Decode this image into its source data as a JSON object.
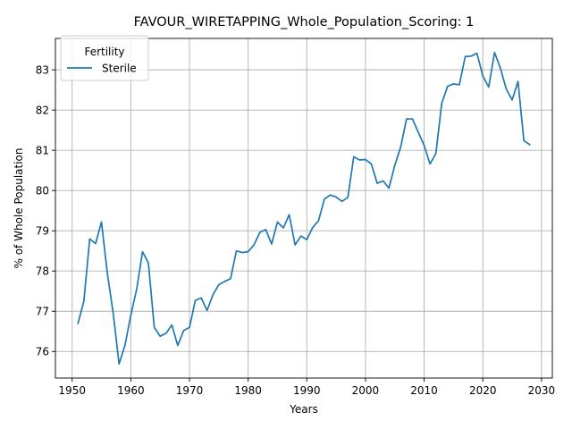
{
  "chart_data": {
    "type": "line",
    "title": "FAVOUR_WIRETAPPING_Whole_Population_Scoring: 1",
    "xlabel": "Years",
    "ylabel": "% of Whole Population",
    "xlim": [
      1947.15,
      2031.85
    ],
    "ylim": [
      75.34,
      83.78
    ],
    "xticks": [
      1950,
      1960,
      1970,
      1980,
      1990,
      2000,
      2010,
      2020,
      2030
    ],
    "yticks": [
      76,
      77,
      78,
      79,
      80,
      81,
      82,
      83
    ],
    "grid": true,
    "legend": {
      "title": "Fertility",
      "placement": "top-left"
    },
    "line_color": "#1f77b4",
    "series": [
      {
        "name": "Sterile",
        "x": [
          1951,
          1952,
          1953,
          1954,
          1955,
          1956,
          1957,
          1958,
          1959,
          1960,
          1961,
          1962,
          1963,
          1964,
          1965,
          1966,
          1967,
          1968,
          1969,
          1970,
          1971,
          1972,
          1973,
          1974,
          1975,
          1976,
          1977,
          1978,
          1979,
          1980,
          1981,
          1982,
          1983,
          1984,
          1985,
          1986,
          1987,
          1988,
          1989,
          1990,
          1991,
          1992,
          1993,
          1994,
          1995,
          1996,
          1997,
          1998,
          1999,
          2000,
          2001,
          2002,
          2003,
          2004,
          2005,
          2006,
          2007,
          2008,
          2009,
          2010,
          2011,
          2012,
          2013,
          2014,
          2015,
          2016,
          2017,
          2018,
          2019,
          2020,
          2021,
          2022,
          2023,
          2024,
          2025,
          2026,
          2027,
          2028
        ],
        "y": [
          76.7,
          77.25,
          78.8,
          78.68,
          79.22,
          77.95,
          76.95,
          75.69,
          76.15,
          76.9,
          77.55,
          78.48,
          78.2,
          76.6,
          76.38,
          76.45,
          76.66,
          76.15,
          76.52,
          76.6,
          77.27,
          77.33,
          77.02,
          77.41,
          77.66,
          77.74,
          77.81,
          78.5,
          78.46,
          78.48,
          78.65,
          78.96,
          79.03,
          78.67,
          79.22,
          79.07,
          79.4,
          78.65,
          78.87,
          78.78,
          79.08,
          79.25,
          79.79,
          79.89,
          79.84,
          79.73,
          79.83,
          80.84,
          80.76,
          80.77,
          80.66,
          80.18,
          80.24,
          80.06,
          80.63,
          81.08,
          81.78,
          81.78,
          81.45,
          81.12,
          80.66,
          80.92,
          82.17,
          82.59,
          82.65,
          82.63,
          83.33,
          83.34,
          83.41,
          82.85,
          82.57,
          83.43,
          83.04,
          82.52,
          82.25,
          82.71,
          81.24,
          81.14
        ]
      }
    ]
  }
}
